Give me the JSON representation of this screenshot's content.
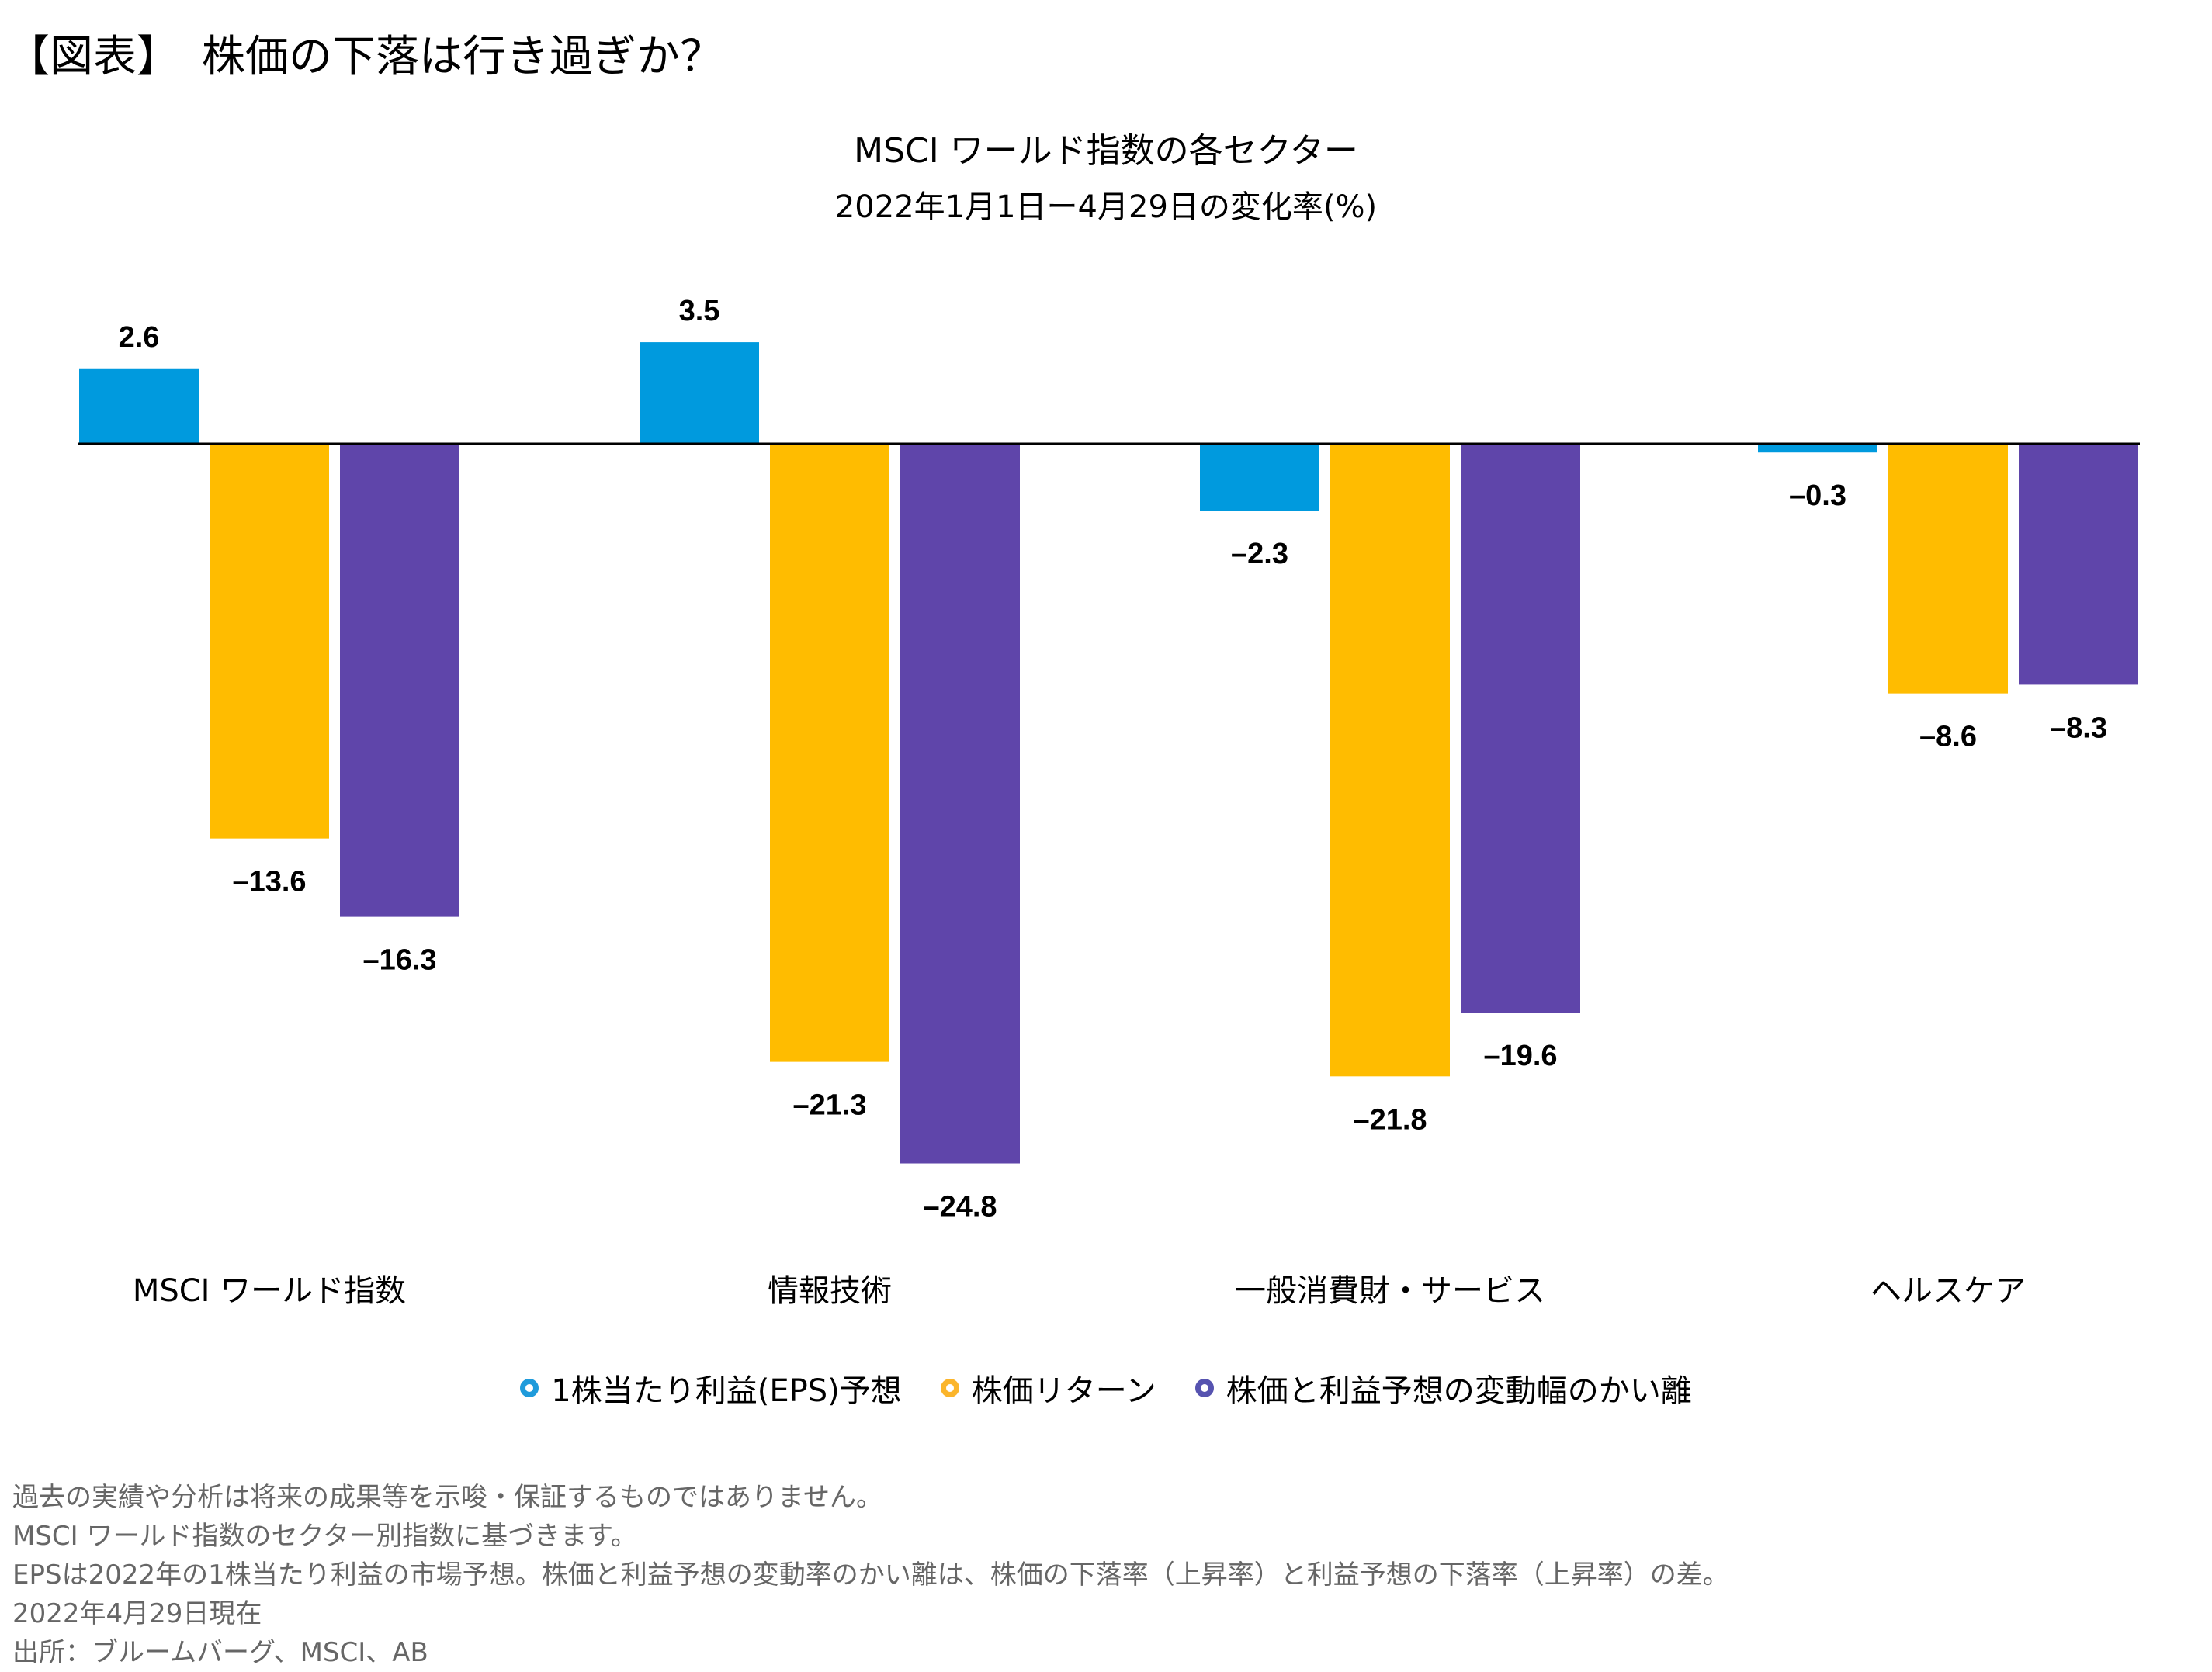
{
  "page_title": "【図表】　株価の下落は行き過ぎか？",
  "chart_data": {
    "type": "bar",
    "title": "MSCI ワールド指数の各セクター",
    "subtitle": "2022年1月1日ー4月29日の変化率(%)",
    "categories": [
      "MSCI ワールド指数",
      "情報技術",
      "一般消費財・サービス",
      "ヘルスケア"
    ],
    "series": [
      {
        "name": "1株当たり利益(EPS)予想",
        "color": "#009ADE",
        "values": [
          2.6,
          3.5,
          -2.3,
          -0.3
        ]
      },
      {
        "name": "株価リターン",
        "color": "#FFBC00",
        "values": [
          -13.6,
          -21.3,
          -21.8,
          -8.6
        ]
      },
      {
        "name": "株価と利益予想の変動幅のかい離",
        "color": "#5F45AA",
        "values": [
          -16.3,
          -24.8,
          -19.6,
          -8.3
        ]
      }
    ],
    "value_labels": [
      [
        "2.6",
        "3.5",
        "–2.3",
        "–0.3"
      ],
      [
        "–13.6",
        "–21.3",
        "–21.8",
        "–8.6"
      ],
      [
        "–16.3",
        "–24.8",
        "–19.6",
        "–8.3"
      ]
    ],
    "ylim": [
      -26,
      5
    ],
    "grid": false,
    "legend_position": "bottom",
    "legend_colors": [
      "#1F9BDB",
      "#FBB52B",
      "#5653B0"
    ]
  },
  "footer": [
    "過去の実績や分析は将来の成果等を示唆・保証するものではありません。",
    "MSCI ワールド指数のセクター別指数に基づきます。",
    "EPSは2022年の1株当たり利益の市場予想。株価と利益予想の変動率のかい離は、株価の下落率（上昇率）と利益予想の下落率（上昇率）の差。",
    "2022年4月29日現在",
    "出所：ブルームバーグ、MSCI、AB"
  ]
}
